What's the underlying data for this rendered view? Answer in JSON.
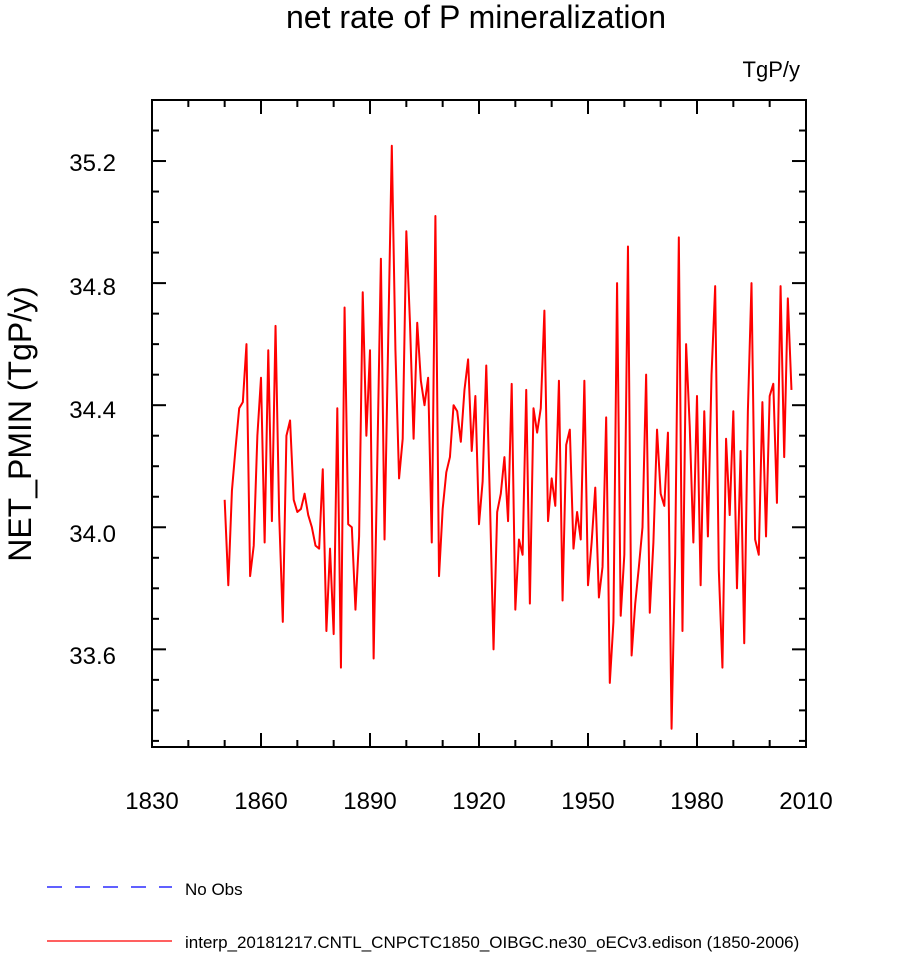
{
  "chart_data": {
    "type": "line",
    "title": "net rate of P mineralization",
    "units_label": "TgP/y",
    "ylabel": "NET_PMIN  (TgP/y)",
    "xlabel": "",
    "xlim": [
      1830,
      2010
    ],
    "ylim": [
      33.28,
      35.4
    ],
    "xticks": [
      "1830",
      "1860",
      "1890",
      "1920",
      "1950",
      "1980",
      "2010"
    ],
    "yticks": [
      "33.6",
      "34.0",
      "34.4",
      "34.8",
      "35.2"
    ],
    "series": [
      {
        "name": "interp_20181217.CNTL_CNPCTC1850_OIBGC.ne30_oECv3.edison (1850-2006)",
        "color": "#ff0000",
        "dash": "solid",
        "x_start": 1850,
        "values": [
          34.09,
          33.81,
          34.12,
          34.26,
          34.39,
          34.41,
          34.6,
          33.84,
          33.94,
          34.3,
          34.49,
          33.95,
          34.58,
          34.02,
          34.66,
          34.04,
          33.69,
          34.3,
          34.35,
          34.09,
          34.05,
          34.06,
          34.11,
          34.04,
          34.0,
          33.94,
          33.93,
          34.19,
          33.66,
          33.93,
          33.65,
          34.39,
          33.54,
          34.72,
          34.01,
          34.0,
          33.73,
          33.97,
          34.77,
          34.3,
          34.58,
          33.57,
          34.21,
          34.88,
          33.96,
          34.61,
          35.25,
          34.58,
          34.16,
          34.29,
          34.97,
          34.67,
          34.29,
          34.67,
          34.48,
          34.4,
          34.49,
          33.95,
          35.02,
          33.84,
          34.06,
          34.18,
          34.23,
          34.4,
          34.38,
          34.28,
          34.45,
          34.55,
          34.25,
          34.43,
          34.01,
          34.15,
          34.53,
          34.09,
          33.6,
          34.05,
          34.11,
          34.23,
          34.02,
          34.47,
          33.73,
          33.96,
          33.91,
          34.45,
          33.75,
          34.39,
          34.31,
          34.39,
          34.71,
          34.02,
          34.16,
          34.07,
          34.48,
          33.76,
          34.27,
          34.32,
          33.93,
          34.05,
          33.96,
          34.48,
          33.81,
          33.95,
          34.13,
          33.77,
          33.87,
          34.36,
          33.49,
          33.69,
          34.8,
          33.71,
          33.91,
          34.92,
          33.58,
          33.75,
          33.87,
          34.0,
          34.5,
          33.72,
          33.95,
          34.32,
          34.11,
          34.07,
          34.31,
          33.34,
          33.91,
          34.95,
          33.66,
          34.6,
          34.33,
          33.95,
          34.43,
          33.81,
          34.38,
          33.97,
          34.5,
          34.79,
          33.86,
          33.54,
          34.29,
          34.04,
          34.38,
          33.8,
          34.25,
          33.62,
          34.38,
          34.8,
          33.96,
          33.91,
          34.41,
          33.97,
          34.43,
          34.47,
          34.08,
          34.79,
          34.23,
          34.75,
          34.45
        ]
      }
    ],
    "legend": [
      {
        "label": "No Obs",
        "color": "#0000ff",
        "dash": "dashed"
      },
      {
        "label": "interp_20181217.CNTL_CNPCTC1850_OIBGC.ne30_oECv3.edison (1850-2006)",
        "color": "#ff0000",
        "dash": "solid"
      }
    ],
    "grid": false,
    "legend_position": "bottom-left"
  }
}
